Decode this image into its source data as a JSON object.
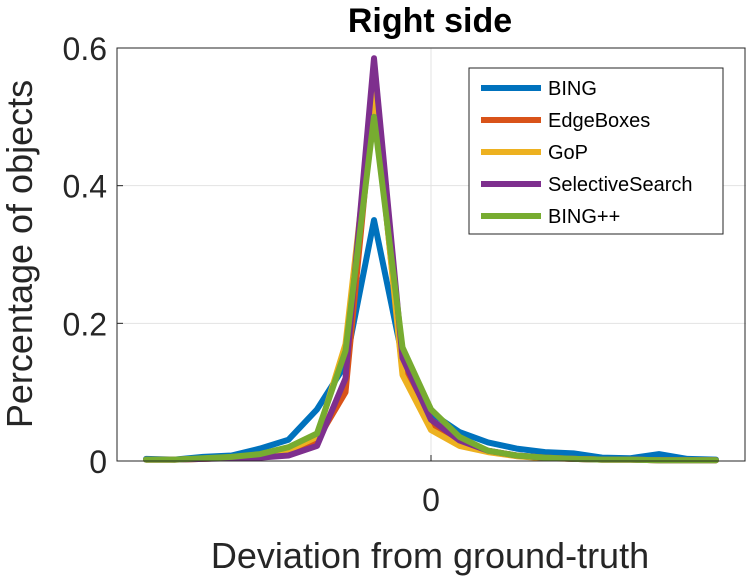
{
  "chart_data": {
    "type": "line",
    "title": "Right side",
    "xlabel": "Deviation from ground-truth",
    "ylabel": "Percentage of objects",
    "xlim": [
      -10,
      10
    ],
    "ylim": [
      0,
      0.6
    ],
    "xticks": [
      0
    ],
    "xtick_labels": [
      "0"
    ],
    "yticks": [
      0,
      0.2,
      0.4,
      0.6
    ],
    "ytick_labels": [
      "0",
      "0.2",
      "0.4",
      "0.6"
    ],
    "grid": true,
    "legend_position": "top-right",
    "x": [
      -10,
      -9,
      -8,
      -7,
      -6,
      -5,
      -4,
      -3,
      -2,
      -1,
      0,
      1,
      2,
      3,
      4,
      5,
      6,
      7,
      8,
      9,
      10
    ],
    "series": [
      {
        "name": "BING",
        "color": "#0072BD",
        "values": [
          0.003,
          0.002,
          0.006,
          0.008,
          0.018,
          0.031,
          0.075,
          0.14,
          0.35,
          0.15,
          0.07,
          0.042,
          0.027,
          0.018,
          0.013,
          0.011,
          0.005,
          0.004,
          0.01,
          0.003,
          0.002
        ]
      },
      {
        "name": "EdgeBoxes",
        "color": "#D95319",
        "values": [
          0.002,
          0.002,
          0.003,
          0.005,
          0.008,
          0.015,
          0.03,
          0.1,
          0.53,
          0.13,
          0.055,
          0.025,
          0.015,
          0.008,
          0.005,
          0.003,
          0.002,
          0.002,
          0.001,
          0.001,
          0.001
        ]
      },
      {
        "name": "GoP",
        "color": "#EDB120",
        "values": [
          0.002,
          0.002,
          0.003,
          0.005,
          0.009,
          0.016,
          0.035,
          0.17,
          0.535,
          0.125,
          0.045,
          0.022,
          0.013,
          0.007,
          0.004,
          0.003,
          0.002,
          0.002,
          0.001,
          0.001,
          0.001
        ]
      },
      {
        "name": "SelectiveSearch",
        "color": "#7E2F8E",
        "values": [
          0.002,
          0.002,
          0.003,
          0.004,
          0.005,
          0.008,
          0.022,
          0.12,
          0.585,
          0.15,
          0.06,
          0.03,
          0.015,
          0.008,
          0.005,
          0.003,
          0.002,
          0.002,
          0.001,
          0.001,
          0.001
        ]
      },
      {
        "name": "BING++",
        "color": "#77AC30",
        "values": [
          0.002,
          0.002,
          0.004,
          0.006,
          0.01,
          0.02,
          0.04,
          0.16,
          0.5,
          0.165,
          0.075,
          0.035,
          0.015,
          0.008,
          0.005,
          0.003,
          0.002,
          0.002,
          0.001,
          0.001,
          0.001
        ]
      }
    ]
  }
}
